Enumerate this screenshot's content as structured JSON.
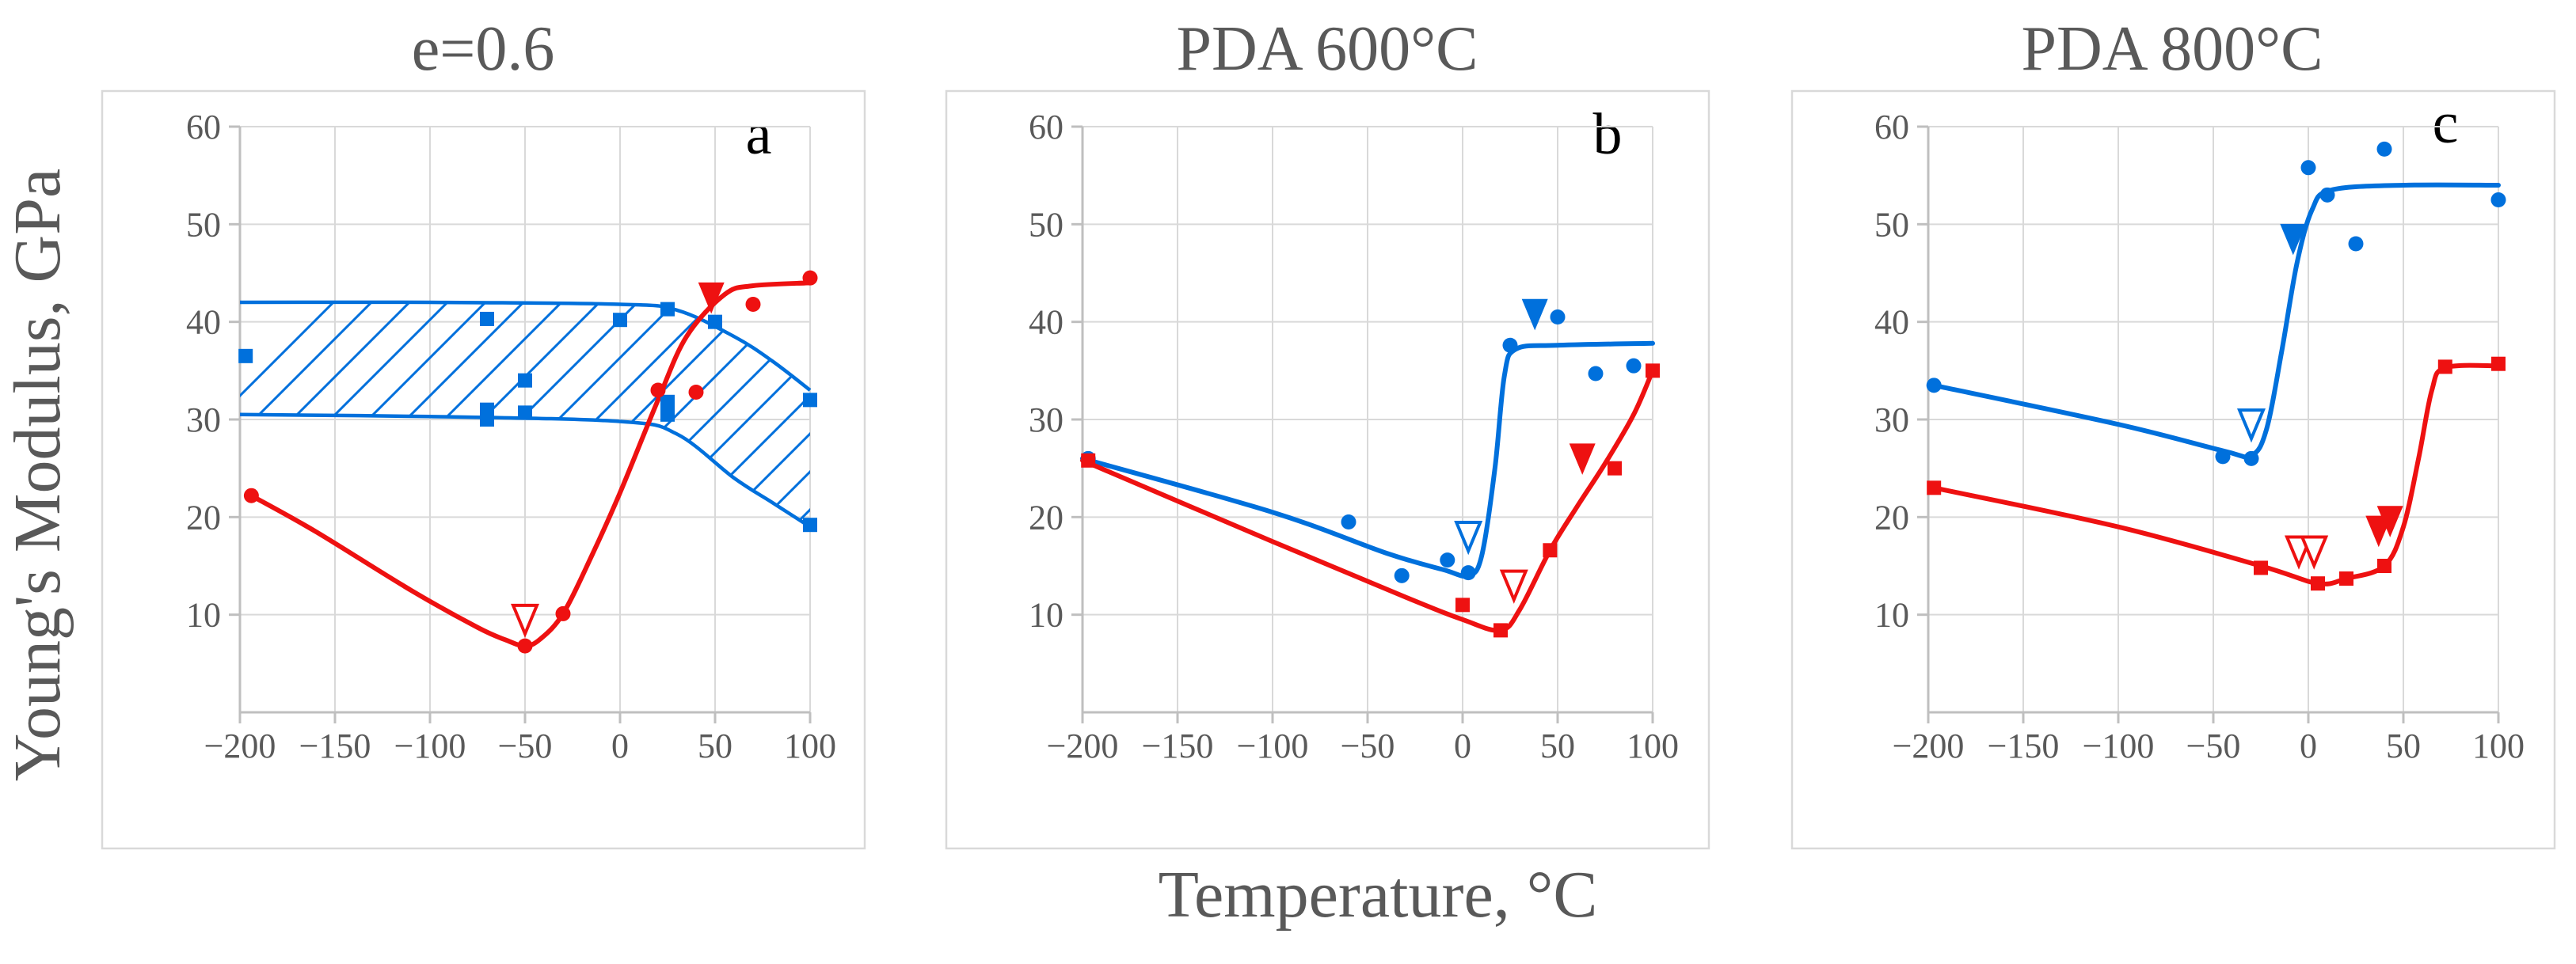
{
  "colors": {
    "blue": "#0070dc",
    "red": "#ee1111",
    "text": "#595959",
    "grid": "#d9d9d9"
  },
  "ylabel": "Young's Modulus, GPa",
  "xlabel": "Temperature, °C",
  "chart_data": [
    {
      "type": "scatter",
      "title": "e=0.6",
      "letter": "a",
      "xlim": [
        -200,
        100
      ],
      "ylim": [
        0,
        60
      ],
      "xticks": [
        -200,
        -150,
        -100,
        -50,
        0,
        50,
        100
      ],
      "yticks": [
        10,
        20,
        30,
        40,
        50,
        60
      ],
      "hatched_band": {
        "upper": [
          [
            -200,
            42
          ],
          [
            -100,
            42
          ],
          [
            0,
            41.8
          ],
          [
            30,
            41.2
          ],
          [
            60,
            38.5
          ],
          [
            80,
            36
          ],
          [
            100,
            33
          ]
        ],
        "lower": [
          [
            -200,
            30.5
          ],
          [
            -100,
            30.3
          ],
          [
            0,
            29.8
          ],
          [
            30,
            28.5
          ],
          [
            60,
            24
          ],
          [
            80,
            21.5
          ],
          [
            100,
            19
          ]
        ]
      },
      "series": [
        {
          "color": "blue",
          "marker": "square",
          "points": [
            [
              -197,
              36.5
            ],
            [
              -70,
              40.3
            ],
            [
              -70,
              31
            ],
            [
              -70,
              30
            ],
            [
              -50,
              34
            ],
            [
              -50,
              30.7
            ],
            [
              0,
              40.2
            ],
            [
              25,
              41.3
            ],
            [
              25,
              31.8
            ],
            [
              25,
              30.5
            ],
            [
              50,
              40
            ],
            [
              100,
              32
            ],
            [
              100,
              19.2
            ]
          ]
        },
        {
          "color": "red",
          "marker": "circle",
          "points": [
            [
              -194,
              22.2
            ],
            [
              -50,
              6.8
            ],
            [
              -30,
              10.1
            ],
            [
              20,
              33
            ],
            [
              40,
              32.8
            ],
            [
              70,
              41.8
            ],
            [
              100,
              44.5
            ]
          ],
          "curve": [
            [
              -194,
              22.2
            ],
            [
              -160,
              18.5
            ],
            [
              -110,
              12.5
            ],
            [
              -75,
              8.7
            ],
            [
              -60,
              7.4
            ],
            [
              -50,
              6.8
            ],
            [
              -42,
              7.5
            ],
            [
              -30,
              10.1
            ],
            [
              -15,
              16
            ],
            [
              0,
              22.5
            ],
            [
              20,
              32
            ],
            [
              35,
              38.5
            ],
            [
              55,
              42.8
            ],
            [
              70,
              43.7
            ],
            [
              100,
              44
            ]
          ]
        }
      ],
      "markers": [
        {
          "color": "red",
          "filled": false,
          "x": -50,
          "y": 9.5
        },
        {
          "color": "red",
          "filled": true,
          "x": 48,
          "y": 42.5
        }
      ]
    },
    {
      "type": "scatter",
      "title": "PDA 600°C",
      "letter": "b",
      "xlim": [
        -200,
        100
      ],
      "ylim": [
        0,
        60
      ],
      "xticks": [
        -200,
        -150,
        -100,
        -50,
        0,
        50,
        100
      ],
      "yticks": [
        10,
        20,
        30,
        40,
        50,
        60
      ],
      "series": [
        {
          "color": "blue",
          "marker": "circle",
          "points": [
            [
              -197,
              26
            ],
            [
              -60,
              19.5
            ],
            [
              -32,
              14
            ],
            [
              -8,
              15.6
            ],
            [
              3,
              14.3
            ],
            [
              25,
              37.6
            ],
            [
              50,
              40.5
            ],
            [
              70,
              34.7
            ],
            [
              90,
              35.5
            ]
          ],
          "curve": [
            [
              -200,
              26
            ],
            [
              -100,
              20.5
            ],
            [
              -40,
              16.3
            ],
            [
              -10,
              14.6
            ],
            [
              3,
              14
            ],
            [
              10,
              16
            ],
            [
              17,
              25
            ],
            [
              22,
              34.5
            ],
            [
              28,
              37.2
            ],
            [
              50,
              37.6
            ],
            [
              100,
              37.8
            ]
          ]
        },
        {
          "color": "red",
          "marker": "square",
          "points": [
            [
              -197,
              25.8
            ],
            [
              0,
              11
            ],
            [
              20,
              8.4
            ],
            [
              46,
              16.6
            ],
            [
              80,
              25
            ],
            [
              100,
              35
            ]
          ],
          "curve": [
            [
              -200,
              25.8
            ],
            [
              -100,
              17.5
            ],
            [
              -30,
              11.8
            ],
            [
              0,
              9.5
            ],
            [
              20,
              8.4
            ],
            [
              30,
              10.5
            ],
            [
              46,
              16.6
            ],
            [
              60,
              21
            ],
            [
              75,
              25.5
            ],
            [
              90,
              30.5
            ],
            [
              100,
              35
            ]
          ]
        }
      ],
      "markers": [
        {
          "color": "blue",
          "filled": false,
          "x": 3,
          "y": 18
        },
        {
          "color": "blue",
          "filled": true,
          "x": 38,
          "y": 40.8
        },
        {
          "color": "red",
          "filled": false,
          "x": 27,
          "y": 13
        },
        {
          "color": "red",
          "filled": true,
          "x": 63,
          "y": 26
        }
      ]
    },
    {
      "type": "scatter",
      "title": "PDA 800°C",
      "letter": "c",
      "xlim": [
        -200,
        100
      ],
      "ylim": [
        0,
        60
      ],
      "xticks": [
        -200,
        -150,
        -100,
        -50,
        0,
        50,
        100
      ],
      "yticks": [
        10,
        20,
        30,
        40,
        50,
        60
      ],
      "series": [
        {
          "color": "blue",
          "marker": "circle",
          "points": [
            [
              -197,
              33.5
            ],
            [
              -45,
              26.2
            ],
            [
              -30,
              26
            ],
            [
              0,
              55.8
            ],
            [
              10,
              53
            ],
            [
              25,
              48
            ],
            [
              40,
              57.7
            ],
            [
              100,
              52.5
            ]
          ],
          "curve": [
            [
              -197,
              33.5
            ],
            [
              -100,
              29.5
            ],
            [
              -45,
              26.8
            ],
            [
              -30,
              26.3
            ],
            [
              -22,
              29
            ],
            [
              -14,
              37
            ],
            [
              -6,
              46
            ],
            [
              2,
              51.5
            ],
            [
              12,
              53.5
            ],
            [
              50,
              54
            ],
            [
              100,
              54
            ]
          ]
        },
        {
          "color": "red",
          "marker": "square",
          "points": [
            [
              -197,
              23
            ],
            [
              -25,
              14.8
            ],
            [
              5,
              13.2
            ],
            [
              20,
              13.7
            ],
            [
              40,
              15
            ],
            [
              72,
              35.4
            ],
            [
              100,
              35.7
            ]
          ],
          "curve": [
            [
              -197,
              23
            ],
            [
              -100,
              19
            ],
            [
              -25,
              15
            ],
            [
              5,
              13.2
            ],
            [
              20,
              13.7
            ],
            [
              40,
              15
            ],
            [
              50,
              19
            ],
            [
              58,
              26
            ],
            [
              65,
              33
            ],
            [
              72,
              35.3
            ],
            [
              100,
              35.5
            ]
          ]
        }
      ],
      "markers": [
        {
          "color": "blue",
          "filled": false,
          "x": -30,
          "y": 29.5
        },
        {
          "color": "blue",
          "filled": true,
          "x": -8,
          "y": 48.5
        },
        {
          "color": "red",
          "filled": false,
          "x": -5,
          "y": 16.5
        },
        {
          "color": "red",
          "filled": false,
          "x": 3,
          "y": 16.5
        },
        {
          "color": "red",
          "filled": true,
          "x": 37,
          "y": 18.6
        },
        {
          "color": "red",
          "filled": true,
          "x": 43,
          "y": 19.6
        }
      ]
    }
  ]
}
